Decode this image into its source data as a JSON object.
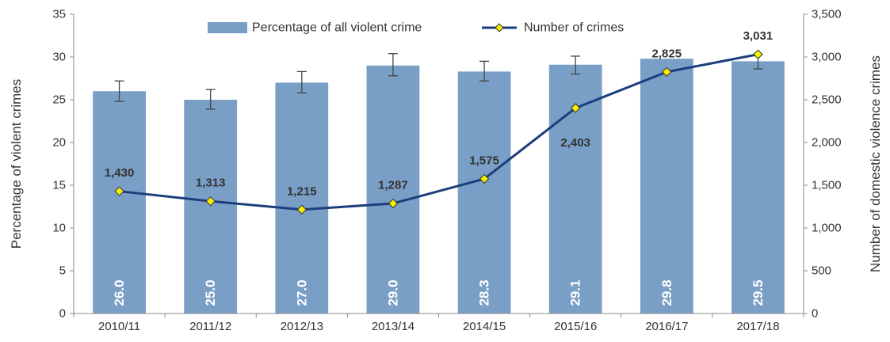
{
  "chart_data": {
    "type": "bar",
    "title": "",
    "categories": [
      "2010/11",
      "2011/12",
      "2012/13",
      "2013/14",
      "2014/15",
      "2015/16",
      "2016/17",
      "2017/18"
    ],
    "series": [
      {
        "name": "Percentage of all violent crime",
        "type": "bar",
        "axis": "left",
        "values": [
          26.0,
          25.0,
          27.0,
          29.0,
          28.3,
          29.1,
          29.8,
          29.5
        ],
        "data_labels": [
          "26.0",
          "25.0",
          "27.0",
          "29.0",
          "28.3",
          "29.1",
          "29.8",
          "29.5"
        ],
        "error_low": [
          24.8,
          23.9,
          25.8,
          27.8,
          27.2,
          28.0,
          null,
          28.6
        ],
        "error_high": [
          27.2,
          26.2,
          28.3,
          30.4,
          29.5,
          30.1,
          null,
          30.3
        ],
        "color": "#7a9fc7"
      },
      {
        "name": "Number of crimes",
        "type": "line",
        "axis": "right",
        "values": [
          1430,
          1313,
          1215,
          1287,
          1575,
          2403,
          2825,
          3031
        ],
        "data_labels": [
          "1,430",
          "1,313",
          "1,215",
          "1,287",
          "1,575",
          "2,403",
          "2,825",
          "3,031"
        ],
        "color": "#1c3e7c",
        "marker_color": "#f5f000"
      }
    ],
    "ylabel_left": "Percentage of violent crimes",
    "ylabel_right": "Number of domestic violence crimes",
    "ylim_left": [
      0,
      35
    ],
    "ylim_right": [
      0,
      3500
    ],
    "yticks_left": [
      "0",
      "5",
      "10",
      "15",
      "20",
      "25",
      "30",
      "35"
    ],
    "yticks_right": [
      "0",
      "500",
      "1,000",
      "1,500",
      "2,000",
      "2,500",
      "3,000",
      "3,500"
    ],
    "grid": false,
    "legend_position": "top-center"
  }
}
